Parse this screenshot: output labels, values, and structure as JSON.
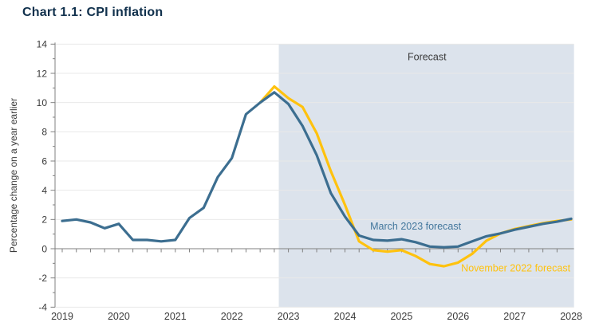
{
  "title": "Chart 1.1: CPI inflation",
  "colors": {
    "march_forecast_line": "#3C6E90",
    "march_forecast_label": "#43779D",
    "november_forecast_line": "#FFC20E",
    "forecast_shade": "#DCE3EC",
    "gridline": "#E9E9E9",
    "axis": "#808080",
    "tick_text": "#3A3A3A",
    "title_text": "#10304C",
    "forecast_label_text": "#3A3A3A"
  },
  "chart_data": {
    "type": "line",
    "title": "Chart 1.1: CPI inflation",
    "xlabel": "",
    "ylabel": "Percentage change on a year earlier",
    "ylim": [
      -4,
      14
    ],
    "y_ticks": [
      14,
      12,
      10,
      8,
      6,
      4,
      2,
      0,
      -2,
      -4
    ],
    "y_minor_tick_step": 1,
    "x_ticks": [
      2019,
      2020,
      2021,
      2022,
      2023,
      2024,
      2025,
      2026,
      2027,
      2028
    ],
    "x_minor_tick_step": 0.25,
    "x_range": [
      2019.0,
      2028.05
    ],
    "grid": "horizontal light gray lines at every 2 units",
    "legend_position": "inline text labels next to each line",
    "forecast_region": {
      "label": "Forecast",
      "x_start": 2022.83,
      "x_end": 2028.05
    },
    "series": [
      {
        "name": "November 2022 forecast",
        "color_key": "november_forecast_line",
        "x_start": 2022.5,
        "x_step": 0.25,
        "values": [
          10.0,
          11.1,
          10.3,
          9.7,
          7.9,
          5.3,
          3.0,
          0.5,
          -0.1,
          -0.2,
          -0.1,
          -0.5,
          -1.05,
          -1.2,
          -0.95,
          -0.35,
          0.55,
          1.05,
          1.35,
          1.55,
          1.75,
          1.9,
          2.0
        ]
      },
      {
        "name": "March 2023 forecast",
        "color_key": "march_forecast_line",
        "x_start": 2019.0,
        "x_step": 0.25,
        "values": [
          1.9,
          2.0,
          1.8,
          1.4,
          1.7,
          0.6,
          0.6,
          0.5,
          0.6,
          2.1,
          2.8,
          4.9,
          6.2,
          9.2,
          10.0,
          10.7,
          9.9,
          8.4,
          6.4,
          3.8,
          2.2,
          0.9,
          0.6,
          0.55,
          0.65,
          0.45,
          0.15,
          0.1,
          0.15,
          0.5,
          0.85,
          1.05,
          1.3,
          1.5,
          1.7,
          1.85,
          2.05
        ]
      }
    ],
    "annotations": [
      {
        "id": "forecast-label",
        "text": "Forecast",
        "x": 2025.45,
        "y": 13.15,
        "color_key": "forecast_label_text"
      },
      {
        "id": "series-label-march",
        "text": "March 2023 forecast",
        "x": 2025.25,
        "y": 1.55,
        "color_key": "march_forecast_label"
      },
      {
        "id": "series-label-november",
        "text": "November 2022 forecast",
        "x": 2027.02,
        "y": -1.3,
        "color_key": "november_forecast_line"
      }
    ]
  }
}
